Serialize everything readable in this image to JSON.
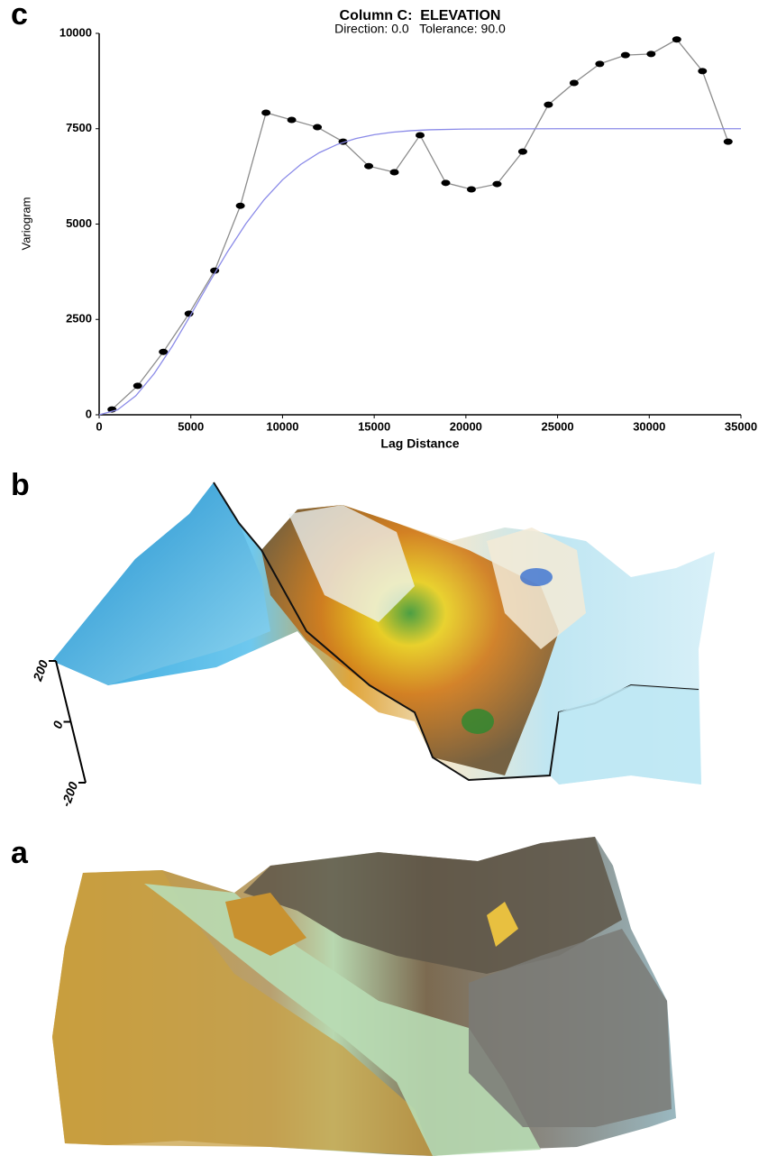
{
  "chart_data": {
    "type": "line",
    "title": "Column C:  ELEVATION",
    "subtitle": "Direction: 0.0   Tolerance: 90.0",
    "x_label": "Lag Distance",
    "y_label": "Variogram",
    "xlim": [
      0,
      35000
    ],
    "ylim": [
      0,
      10000
    ],
    "xticks": [
      0,
      5000,
      10000,
      15000,
      20000,
      25000,
      30000,
      35000
    ],
    "yticks": [
      0,
      2500,
      5000,
      7500,
      10000
    ],
    "series": [
      {
        "color": "#8c8c8c",
        "marker_color": "#000000",
        "markers": true,
        "x": [
          700,
          2100,
          3500,
          4900,
          6300,
          7700,
          9100,
          10500,
          11900,
          13300,
          14700,
          16100,
          17500,
          18900,
          20300,
          21700,
          23100,
          24500,
          25900,
          27300,
          28700,
          30100,
          31500,
          32900,
          34300
        ],
        "values": [
          140,
          760,
          1650,
          2650,
          3780,
          5480,
          7920,
          7730,
          7540,
          7160,
          6520,
          6360,
          7330,
          6080,
          5910,
          6050,
          6900,
          8130,
          8700,
          9200,
          9430,
          9460,
          9840,
          9010,
          7160
        ]
      },
      {
        "color": "#8a8ae8",
        "markers": false,
        "x": [
          0,
          1000,
          2000,
          3000,
          4000,
          5000,
          6000,
          7000,
          8000,
          9000,
          10000,
          11000,
          12000,
          13000,
          14000,
          15000,
          16000,
          17000,
          18000,
          20000,
          25000,
          35000
        ],
        "values": [
          0,
          128,
          499,
          1078,
          1806,
          2623,
          3465,
          4274,
          5008,
          5641,
          6160,
          6566,
          6871,
          7091,
          7243,
          7344,
          7409,
          7448,
          7472,
          7492,
          7500,
          7500
        ]
      }
    ]
  },
  "panel_labels": [
    "c",
    "b",
    "a"
  ],
  "surface_axis": {
    "ticks": [
      200,
      0,
      -200
    ]
  }
}
